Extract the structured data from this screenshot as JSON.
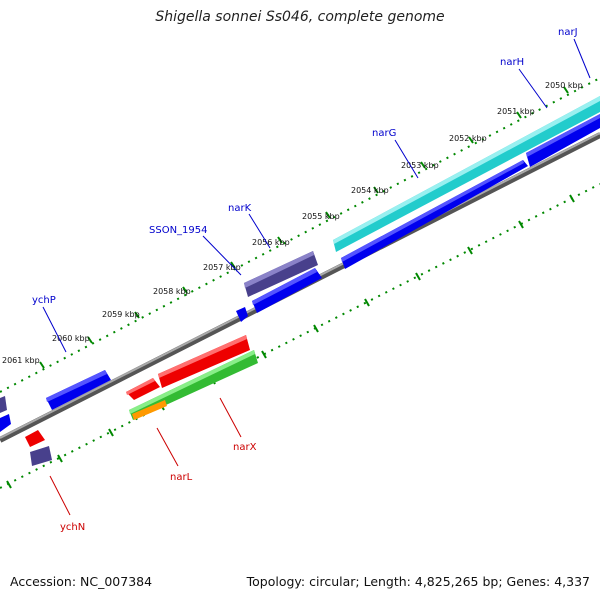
{
  "header": {
    "title": "Shigella sonnei Ss046, complete genome"
  },
  "footer": {
    "accession": "Accession: NC_007384",
    "topology": "Topology: circular; Length: 4,825,265 bp; Genes: 4,337"
  },
  "scale": {
    "tick_labels": [
      "2050 kbp",
      "2051 kbp",
      "2052 kbp",
      "2053 kbp",
      "2054 kbp",
      "2055 kbp",
      "2056 kbp",
      "2057 kbp",
      "2058 kbp",
      "2059 kbp",
      "2060 kbp",
      "2061 kbp"
    ]
  },
  "gene_labels": [
    {
      "text": "narJ",
      "color": "#0000cc"
    },
    {
      "text": "narH",
      "color": "#0000cc"
    },
    {
      "text": "narG",
      "color": "#0000cc"
    },
    {
      "text": "narK",
      "color": "#0000cc"
    },
    {
      "text": "SSON_1954",
      "color": "#0000cc"
    },
    {
      "text": "ychP",
      "color": "#0000cc"
    },
    {
      "text": "narX",
      "color": "#cc0000"
    },
    {
      "text": "narL",
      "color": "#cc0000"
    },
    {
      "text": "ychN",
      "color": "#cc0000"
    }
  ],
  "colors": {
    "forward_cds": "#0000ee",
    "reverse_cds": "#ee0000",
    "pseudo": "#48408c",
    "rna": "#22cccc",
    "green_feature": "#33bb33",
    "orange_feature": "#ff9900",
    "backbone": "#888888",
    "tick": "#008800"
  }
}
